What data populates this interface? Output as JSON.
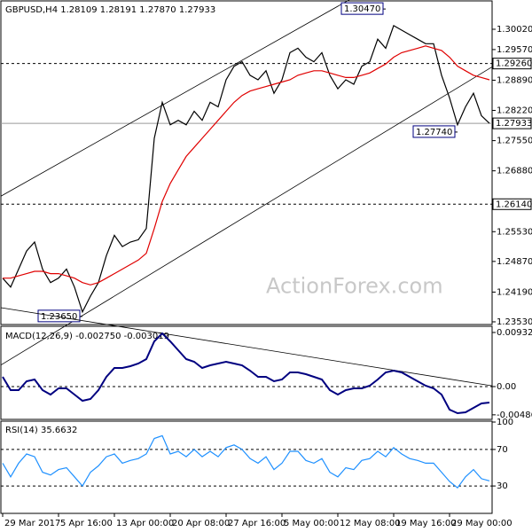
{
  "chart_data": [
    {
      "type": "line",
      "title": "GBPUSD,H4 1.28109 1.28191 1.27870 1.27933",
      "watermark": "ActionForex.com",
      "ylim": [
        1.2349,
        1.3063
      ],
      "yticks": [
        {
          "value": 1.3002,
          "label": "1.30020"
        },
        {
          "value": 1.2957,
          "label": "1.29570"
        },
        {
          "value": 1.2889,
          "label": "1.28890"
        },
        {
          "value": 1.2822,
          "label": "1.28220"
        },
        {
          "value": 1.2755,
          "label": "1.27550"
        },
        {
          "value": 1.2688,
          "label": "1.26880"
        },
        {
          "value": 1.2553,
          "label": "1.25530"
        },
        {
          "value": 1.2487,
          "label": "1.24870"
        },
        {
          "value": 1.2419,
          "label": "1.24190"
        },
        {
          "value": 1.2353,
          "label": "1.23530"
        }
      ],
      "series": [
        {
          "name": "GBPUSD",
          "color": "#000000",
          "values": [
            1.245,
            1.243,
            1.247,
            1.251,
            1.253,
            1.247,
            1.244,
            1.245,
            1.247,
            1.243,
            1.2375,
            1.241,
            1.244,
            1.25,
            1.2545,
            1.252,
            1.253,
            1.2535,
            1.256,
            1.276,
            1.284,
            1.279,
            1.28,
            1.279,
            1.282,
            1.28,
            1.284,
            1.283,
            1.289,
            1.292,
            1.293,
            1.29,
            1.289,
            1.291,
            1.286,
            1.289,
            1.295,
            1.296,
            1.294,
            1.293,
            1.295,
            1.29,
            1.287,
            1.289,
            1.288,
            1.292,
            1.293,
            1.298,
            1.296,
            1.301,
            1.3,
            1.299,
            1.298,
            1.297,
            1.297,
            1.29,
            1.285,
            1.279,
            1.283,
            1.286,
            1.281,
            1.27933
          ]
        },
        {
          "color": "#e00000",
          "values": [
            1.245,
            1.245,
            1.2455,
            1.246,
            1.2465,
            1.2465,
            1.246,
            1.246,
            1.2455,
            1.245,
            1.244,
            1.2435,
            1.244,
            1.245,
            1.246,
            1.247,
            1.248,
            1.249,
            1.2505,
            1.256,
            1.262,
            1.266,
            1.269,
            1.272,
            1.274,
            1.276,
            1.278,
            1.28,
            1.282,
            1.284,
            1.2855,
            1.2865,
            1.287,
            1.2875,
            1.288,
            1.2885,
            1.289,
            1.29,
            1.2905,
            1.291,
            1.291,
            1.2905,
            1.29,
            1.2895,
            1.2895,
            1.29,
            1.2905,
            1.2915,
            1.2925,
            1.294,
            1.295,
            1.2955,
            1.296,
            1.2965,
            1.296,
            1.2955,
            1.294,
            1.292,
            1.291,
            1.29,
            1.2895,
            1.289
          ]
        }
      ],
      "trendlines": [
        {
          "from": [
            0,
            1.2634
          ],
          "to": [
            42,
            1.3053
          ]
        },
        {
          "from": [
            10,
            1.2367
          ],
          "to": [
            61,
            1.2915
          ]
        }
      ],
      "levels": [
        {
          "value": 1.2926,
          "label": "1.29260",
          "style": "dashed"
        },
        {
          "value": 1.2614,
          "label": "1.26140",
          "style": "dashed"
        },
        {
          "value": 1.27933,
          "label": "1.27933",
          "style": "solid"
        }
      ],
      "annotations": [
        {
          "index": 48,
          "value": 1.3047,
          "label": "1.30470"
        },
        {
          "index": 57,
          "value": 1.2774,
          "label": "1.27740"
        },
        {
          "index": 10,
          "value": 1.2365,
          "label": "1.23650"
        }
      ]
    },
    {
      "type": "line",
      "title": "MACD(12,26,9) -0.002750 -0.003019",
      "ylim": [
        -0.0055,
        0.01008
      ],
      "yticks": [
        0.009321,
        {
          "value": 0,
          "label": "0.00"
        },
        -0.004866
      ],
      "series": [
        {
          "color": "#000080",
          "values": [
            0.00168,
            -0.00061,
            -0.00061,
            0.00092,
            0.00122,
            -0.00061,
            -0.00138,
            -0.00031,
            -0.00031,
            -0.00138,
            -0.00244,
            -0.00214,
            -0.00061,
            0.00168,
            0.00321,
            0.00321,
            0.00351,
            0.00397,
            0.00474,
            0.00779,
            0.00917,
            0.00779,
            0.00626,
            0.00474,
            0.00428,
            0.00321,
            0.00367,
            0.00397,
            0.00428,
            0.00397,
            0.00367,
            0.00275,
            0.00168,
            0.00168,
            0.00092,
            0.00122,
            0.00244,
            0.00244,
            0.00214,
            0.00168,
            0.00122,
            -0.00061,
            -0.00138,
            -0.00061,
            -0.00031,
            -0.00031,
            0.00015,
            0.00122,
            0.00244,
            0.00275,
            0.00244,
            0.00168,
            0.00092,
            0.00015,
            -0.00031,
            -0.00138,
            -0.00397,
            -0.00458,
            -0.00443,
            -0.00367,
            -0.0029,
            -0.00275
          ]
        }
      ],
      "trendlines": [
        {
          "from": [
            20,
            0.00917
          ],
          "to": [
            61,
            0.0002
          ]
        }
      ],
      "levels": [
        {
          "value": 0,
          "style": "dashed"
        }
      ]
    },
    {
      "type": "line",
      "title": "RSI(14) 35.6632",
      "ylim": [
        0,
        100
      ],
      "yticks": [
        100,
        70,
        30
      ],
      "series": [
        {
          "color": "#1e90ff",
          "values": [
            55,
            40,
            55,
            65,
            62,
            45,
            42,
            48,
            50,
            40,
            30,
            45,
            52,
            62,
            65,
            55,
            58,
            60,
            65,
            82,
            85,
            65,
            68,
            62,
            70,
            62,
            68,
            62,
            72,
            75,
            70,
            60,
            55,
            62,
            48,
            55,
            68,
            68,
            58,
            55,
            60,
            45,
            40,
            50,
            48,
            58,
            60,
            68,
            62,
            72,
            65,
            60,
            58,
            55,
            55,
            45,
            35,
            28,
            40,
            48,
            38,
            35.6632
          ]
        }
      ],
      "levels": [
        {
          "value": 70,
          "style": "dashed"
        },
        {
          "value": 30,
          "style": "dashed"
        }
      ],
      "categories": [
        "29 Mar 2017",
        null,
        null,
        null,
        null,
        null,
        null,
        "5 Apr 16:00",
        null,
        null,
        null,
        null,
        null,
        null,
        "13 Apr 00:00",
        null,
        null,
        null,
        null,
        null,
        null,
        "20 Apr 08:00",
        null,
        null,
        null,
        null,
        null,
        null,
        "27 Apr 16:00",
        null,
        null,
        null,
        null,
        null,
        null,
        "5 May 00:00",
        null,
        null,
        null,
        null,
        null,
        null,
        "12 May 08:00",
        null,
        null,
        null,
        null,
        null,
        null,
        "19 May 16:00",
        null,
        null,
        null,
        null,
        null,
        null,
        "29 May 00:00",
        null,
        null,
        null,
        null,
        null
      ]
    }
  ]
}
